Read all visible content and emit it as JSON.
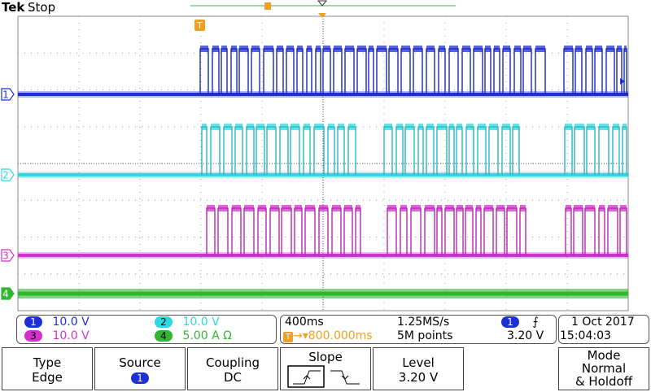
{
  "header": {
    "brand": "Tek",
    "run_state": "Stop"
  },
  "channels": [
    {
      "num": "1",
      "color": "#1f2fd6"
    },
    {
      "num": "2",
      "color": "#2fd8e0"
    },
    {
      "num": "3",
      "color": "#d62fd0"
    },
    {
      "num": "4",
      "color": "#2fb82f"
    }
  ],
  "trigger_marker": "T",
  "readouts": {
    "ch1": {
      "num": "1",
      "value": "10.0 V"
    },
    "ch2": {
      "num": "2",
      "value": "10.0 V"
    },
    "ch3": {
      "num": "3",
      "value": "10.0 V"
    },
    "ch4": {
      "num": "4",
      "value": "5.00 A Ω"
    }
  },
  "timebase": {
    "scale": "400ms",
    "rate": "1.25MS/s",
    "delay": "800.000ms",
    "points": "5M points"
  },
  "trigger": {
    "source": "1",
    "level": "3.20 V"
  },
  "datetime": {
    "date": "1 Oct  2017",
    "time": "15:04:03"
  },
  "menu": {
    "type_label": "Type",
    "type_value": "Edge",
    "source_label": "Source",
    "source_value": "1",
    "coupling_label": "Coupling",
    "coupling_value": "DC",
    "slope_label": "Slope",
    "level_label": "Level",
    "level_value": "3.20 V",
    "mode_label": "Mode",
    "mode_value": "Normal",
    "mode_value2": "& Holdoff"
  },
  "colors": {
    "ch1": "#1f2fd6",
    "ch2": "#2fd8e0",
    "ch3": "#d62fd0",
    "ch4": "#2fb82f",
    "grid": "#9a9a9a"
  }
}
